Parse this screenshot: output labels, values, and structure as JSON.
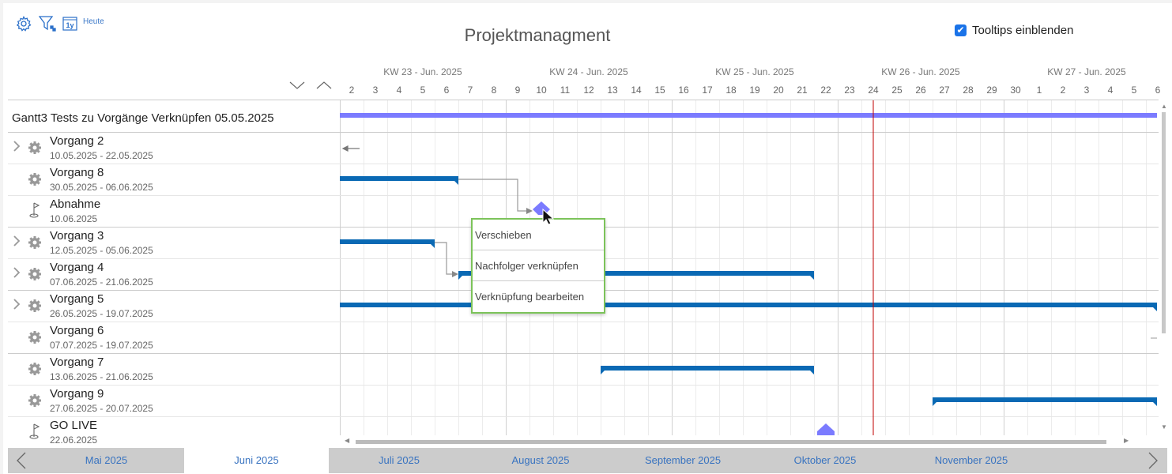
{
  "toolbar": {
    "settings_icon": "gear-icon",
    "filter_icon": "filter-icon",
    "calendar_icon": "calendar-1y-icon",
    "calendar_label": "1y",
    "today_label": "Heute"
  },
  "title": "Projektmanagment",
  "tooltips": {
    "label": "Tooltips einblenden",
    "checked": true
  },
  "colors": {
    "bar": "#0a69b4",
    "summary": "#7b7bff",
    "milestone": "#7b7bff",
    "today_line": "#c00000",
    "menu_border": "#7cc35a",
    "link": "#3873c0"
  },
  "weeks": [
    "KW 23 - Jun. 2025",
    "KW 24 - Jun. 2025",
    "KW 25 - Jun. 2025",
    "KW 26 - Jun. 2025",
    "KW 27 - Jun. 2025"
  ],
  "days": [
    "2",
    "3",
    "4",
    "5",
    "6",
    "7",
    "8",
    "9",
    "10",
    "11",
    "12",
    "13",
    "14",
    "15",
    "16",
    "17",
    "18",
    "19",
    "20",
    "21",
    "22",
    "23",
    "24",
    "25",
    "26",
    "27",
    "28",
    "29",
    "30",
    "1",
    "2",
    "3",
    "4",
    "5",
    "6"
  ],
  "today_day": "24.06.2025",
  "project": {
    "name": "Gantt3 Tests zu Vorgänge Verknüpfen 05.05.2025"
  },
  "tasks": [
    {
      "name": "Vorgang 2",
      "dates": "10.05.2025 - 22.05.2025",
      "icon": "gear-icon",
      "expandable": true
    },
    {
      "name": "Vorgang 8",
      "dates": "30.05.2025 - 06.06.2025",
      "icon": "gear-icon",
      "expandable": false
    },
    {
      "name": "Abnahme",
      "dates": "10.06.2025",
      "icon": "flag-icon",
      "expandable": false
    },
    {
      "name": "Vorgang 3",
      "dates": "12.05.2025 - 05.06.2025",
      "icon": "gear-icon",
      "expandable": true
    },
    {
      "name": "Vorgang 4",
      "dates": "07.06.2025 - 21.06.2025",
      "icon": "gear-icon",
      "expandable": true
    },
    {
      "name": "Vorgang 5",
      "dates": "26.05.2025 - 19.07.2025",
      "icon": "gear-icon",
      "expandable": true
    },
    {
      "name": "Vorgang 6",
      "dates": "07.07.2025 - 19.07.2025",
      "icon": "gear-icon",
      "expandable": false
    },
    {
      "name": "Vorgang 7",
      "dates": "13.06.2025 - 21.06.2025",
      "icon": "gear-icon",
      "expandable": false
    },
    {
      "name": "Vorgang 9",
      "dates": "27.06.2025 - 20.07.2025",
      "icon": "gear-icon",
      "expandable": false
    },
    {
      "name": "GO LIVE",
      "dates": "22.06.2025",
      "icon": "flag-icon",
      "expandable": false
    }
  ],
  "context_menu": [
    "Verschieben",
    "Nachfolger verknüpfen",
    "Verknüpfung bearbeiten"
  ],
  "months": [
    "Mai 2025",
    "Juni 2025",
    "Juli 2025",
    "August 2025",
    "September 2025",
    "Oktober 2025",
    "November 2025"
  ],
  "selected_month": "Juni 2025"
}
